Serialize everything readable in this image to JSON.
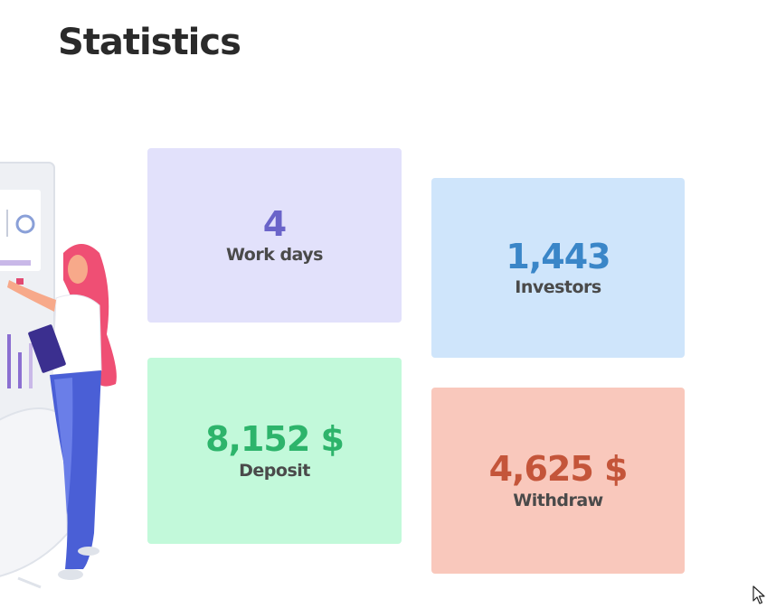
{
  "page": {
    "title": "Statistics"
  },
  "stats": [
    {
      "value": "4",
      "label": "Work days",
      "bg": "#e2e1fb",
      "color": "#6a64c9"
    },
    {
      "value": "1,443",
      "label": "Investors",
      "bg": "#cfe5fb",
      "color": "#3a86c8"
    },
    {
      "value": "8,152 $",
      "label": "Deposit",
      "bg": "#c2f9da",
      "color": "#2db46b"
    },
    {
      "value": "4,625 $",
      "label": "Withdraw",
      "bg": "#f9c8bc",
      "color": "#c4553a"
    }
  ],
  "illustration": {
    "icon": "woman-with-clipboard-illustration"
  },
  "cursor": {
    "icon": "mouse-pointer-icon"
  }
}
